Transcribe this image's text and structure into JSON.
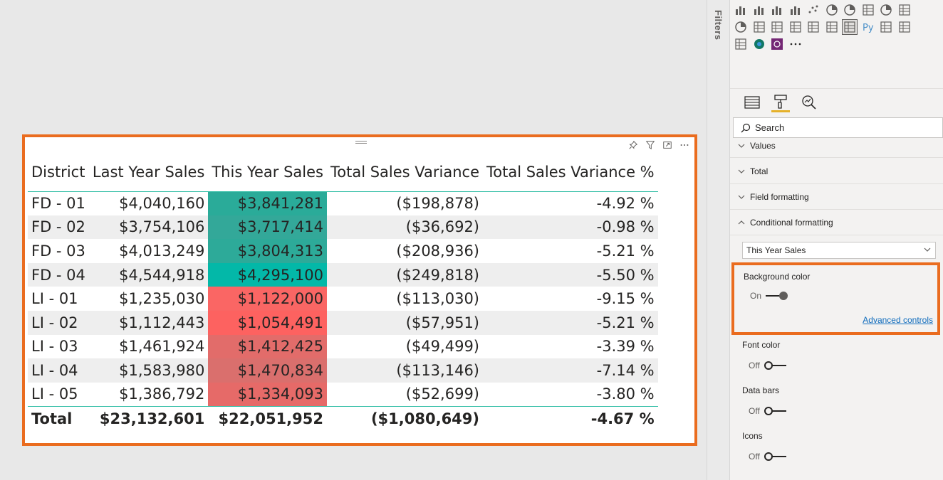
{
  "table": {
    "headers": [
      "District",
      "Last Year Sales",
      "This Year Sales",
      "Total Sales Variance",
      "Total Sales Variance %"
    ],
    "rows": [
      {
        "district": "FD - 01",
        "last_year": "$4,040,160",
        "this_year": "$3,841,281",
        "variance": "($198,878)",
        "variance_pct": "-4.92 %",
        "this_year_bg": "#2aab99"
      },
      {
        "district": "FD - 02",
        "last_year": "$3,754,106",
        "this_year": "$3,717,414",
        "variance": "($36,692)",
        "variance_pct": "-0.98 %",
        "this_year_bg": "#33a899"
      },
      {
        "district": "FD - 03",
        "last_year": "$4,013,249",
        "this_year": "$3,804,313",
        "variance": "($208,936)",
        "variance_pct": "-5.21 %",
        "this_year_bg": "#2daa99"
      },
      {
        "district": "FD - 04",
        "last_year": "$4,544,918",
        "this_year": "$4,295,100",
        "variance": "($249,818)",
        "variance_pct": "-5.50 %",
        "this_year_bg": "#03b8a8"
      },
      {
        "district": "LI - 01",
        "last_year": "$1,235,030",
        "this_year": "$1,122,000",
        "variance": "($113,030)",
        "variance_pct": "-9.15 %",
        "this_year_bg": "#fa6664"
      },
      {
        "district": "LI - 02",
        "last_year": "$1,112,443",
        "this_year": "$1,054,491",
        "variance": "($57,951)",
        "variance_pct": "-5.21 %",
        "this_year_bg": "#fd6260"
      },
      {
        "district": "LI - 03",
        "last_year": "$1,461,924",
        "this_year": "$1,412,425",
        "variance": "($49,499)",
        "variance_pct": "-3.39 %",
        "this_year_bg": "#e26c6a"
      },
      {
        "district": "LI - 04",
        "last_year": "$1,583,980",
        "this_year": "$1,470,834",
        "variance": "($113,146)",
        "variance_pct": "-7.14 %",
        "this_year_bg": "#da6f6d"
      },
      {
        "district": "LI - 05",
        "last_year": "$1,386,792",
        "this_year": "$1,334,093",
        "variance": "($52,699)",
        "variance_pct": "-3.80 %",
        "this_year_bg": "#e66a68"
      }
    ],
    "total": {
      "label": "Total",
      "last_year": "$23,132,601",
      "this_year": "$22,051,952",
      "variance": "($1,080,649)",
      "variance_pct": "-4.67 %"
    }
  },
  "filters_pane": {
    "label": "Filters"
  },
  "format_pane": {
    "search_placeholder": "Search",
    "sections": {
      "values": "Values",
      "total": "Total",
      "field_formatting": "Field formatting",
      "conditional_formatting": "Conditional formatting"
    },
    "cf_field_selected": "This Year Sales",
    "background_color": {
      "label": "Background color",
      "state": "On",
      "link": "Advanced controls"
    },
    "font_color": {
      "label": "Font color",
      "state": "Off"
    },
    "data_bars": {
      "label": "Data bars",
      "state": "Off"
    },
    "icons": {
      "label": "Icons",
      "state": "Off"
    }
  },
  "colors": {
    "highlight_border": "#ea6c1f",
    "table_rule": "#2ebda4",
    "active_tab": "#e5b12a"
  }
}
